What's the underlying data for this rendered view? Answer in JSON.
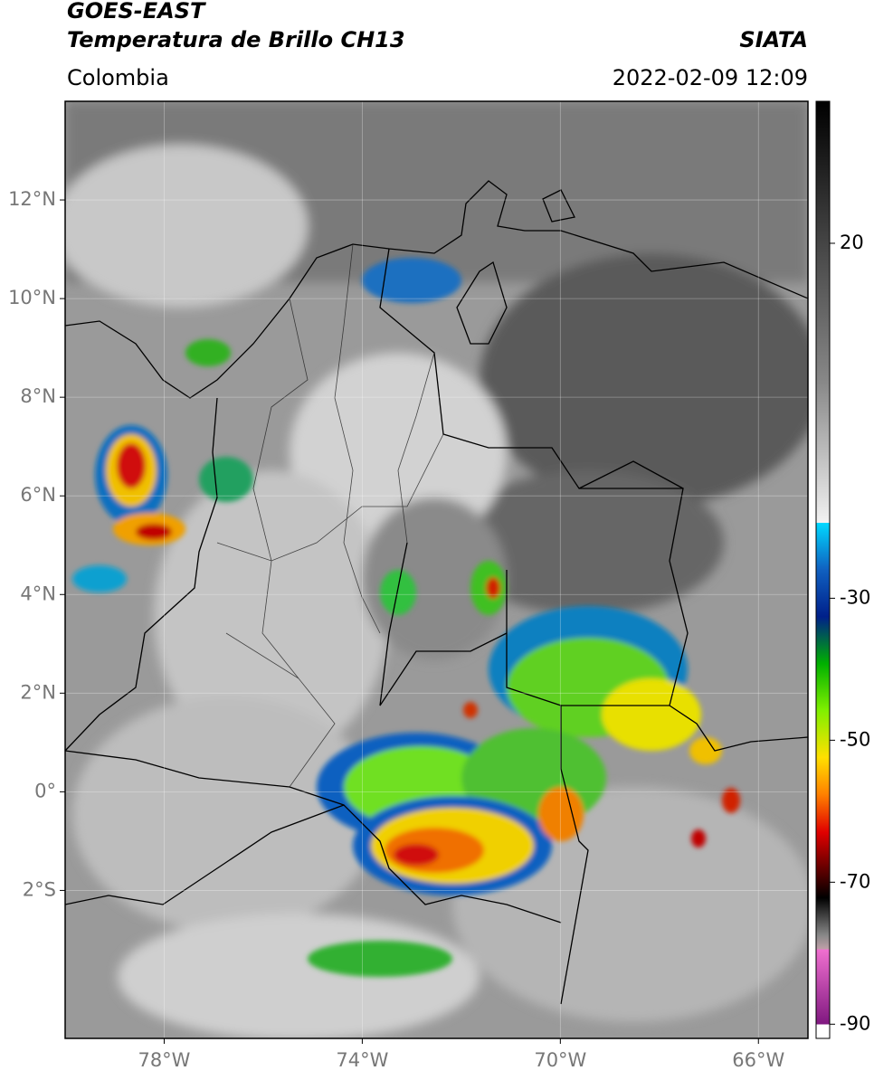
{
  "header": {
    "title": "GOES-EAST",
    "subtitle": "Temperatura de Brillo CH13",
    "source": "SIATA",
    "region": "Colombia",
    "timestamp": "2022-02-09 12:09"
  },
  "map": {
    "lon_range": [
      -80,
      -65
    ],
    "lat_range": [
      -5,
      14
    ],
    "lon_ticks": [
      {
        "value": -78,
        "label": "78°W"
      },
      {
        "value": -74,
        "label": "74°W"
      },
      {
        "value": -70,
        "label": "70°W"
      },
      {
        "value": -66,
        "label": "66°W"
      }
    ],
    "lat_ticks": [
      {
        "value": 12,
        "label": "12°N"
      },
      {
        "value": 10,
        "label": "10°N"
      },
      {
        "value": 8,
        "label": "8°N"
      },
      {
        "value": 6,
        "label": "6°N"
      },
      {
        "value": 4,
        "label": "4°N"
      },
      {
        "value": 2,
        "label": "2°N"
      },
      {
        "value": 0,
        "label": "0°"
      },
      {
        "value": -2,
        "label": "2°S"
      }
    ],
    "colorbar": {
      "range": [
        -92,
        40
      ],
      "ticks": [
        20,
        -30,
        -50,
        -70,
        -90
      ]
    }
  }
}
